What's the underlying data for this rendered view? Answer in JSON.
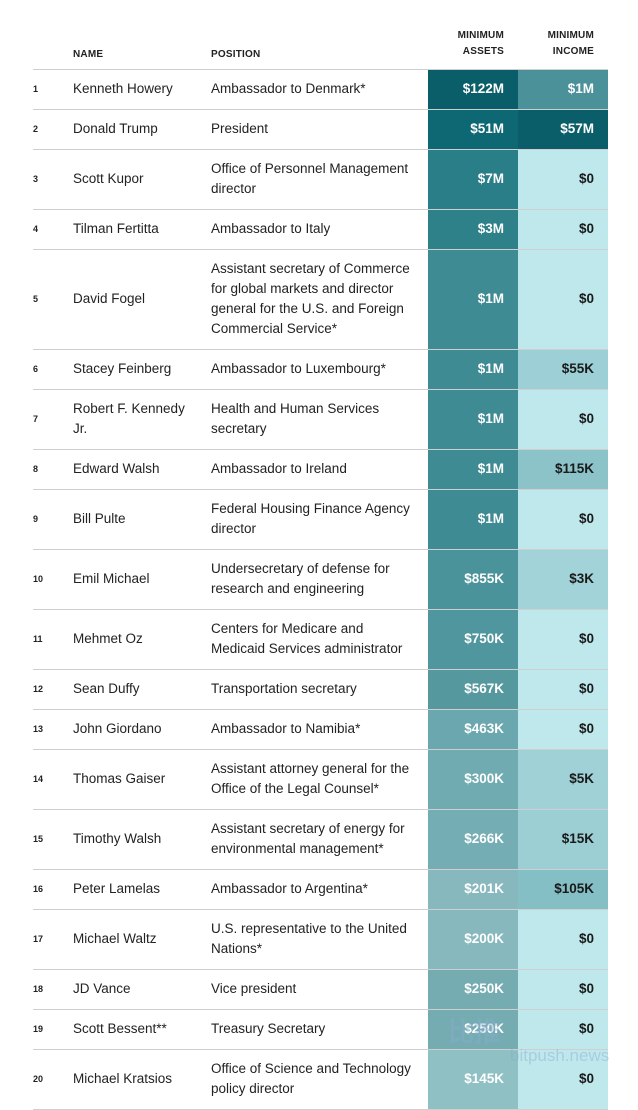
{
  "table": {
    "headers": [
      "NAME",
      "POSITION",
      "MINIMUM ASSETS",
      "MINIMUM INCOME"
    ],
    "rows": [
      {
        "rank": "1",
        "name": "Kenneth Howery",
        "position": "Ambassador to Denmark*",
        "assets": "$122M",
        "assets_color": "#0a5e69",
        "income": "$1M",
        "income_color": "#4a919a"
      },
      {
        "rank": "2",
        "name": "Donald Trump",
        "position": "President",
        "assets": "$51M",
        "assets_color": "#0d6873",
        "income": "$57M",
        "income_color": "#0a5e69"
      },
      {
        "rank": "3",
        "name": "Scott Kupor",
        "position": "Office of Personnel Management director",
        "assets": "$7M",
        "assets_color": "#2a7e87",
        "income": "$0",
        "income_color": "#bfe8ec"
      },
      {
        "rank": "4",
        "name": "Tilman Fertitta",
        "position": "Ambassador to Italy",
        "assets": "$3M",
        "assets_color": "#2e8089",
        "income": "$0",
        "income_color": "#bfe8ec"
      },
      {
        "rank": "5",
        "name": "David Fogel",
        "position": "Assistant secretary of Commerce for global markets and director general for the U.S. and Foreign Commercial Service*",
        "assets": "$1M",
        "assets_color": "#3f8b94",
        "income": "$0",
        "income_color": "#bfe8ec"
      },
      {
        "rank": "6",
        "name": "Stacey Feinberg",
        "position": "Ambassador to Luxembourg*",
        "assets": "$1M",
        "assets_color": "#3f8b94",
        "income": "$55K",
        "income_color": "#9dd0d6"
      },
      {
        "rank": "7",
        "name": "Robert F. Kennedy Jr.",
        "position": "Health and Human Services secretary",
        "assets": "$1M",
        "assets_color": "#3f8b94",
        "income": "$0",
        "income_color": "#bfe8ec"
      },
      {
        "rank": "8",
        "name": "Edward Walsh",
        "position": "Ambassador to Ireland",
        "assets": "$1M",
        "assets_color": "#3f8b94",
        "income": "$115K",
        "income_color": "#8cc3c9"
      },
      {
        "rank": "9",
        "name": "Bill Pulte",
        "position": "Federal Housing Finance Agency director",
        "assets": "$1M",
        "assets_color": "#3f8b94",
        "income": "$0",
        "income_color": "#bfe8ec"
      },
      {
        "rank": "10",
        "name": "Emil Michael",
        "position": "Undersecretary of defense for research and engineering",
        "assets": "$855K",
        "assets_color": "#4a939b",
        "income": "$3K",
        "income_color": "#a2d3d8"
      },
      {
        "rank": "11",
        "name": "Mehmet Oz",
        "position": "Centers for Medicare and Medicaid Services administrator",
        "assets": "$750K",
        "assets_color": "#50969e",
        "income": "$0",
        "income_color": "#bfe8ec"
      },
      {
        "rank": "12",
        "name": "Sean Duffy",
        "position": "Transportation secretary",
        "assets": "$567K",
        "assets_color": "#55999f",
        "income": "$0",
        "income_color": "#bfe8ec"
      },
      {
        "rank": "13",
        "name": "John Giordano",
        "position": "Ambassador to Namibia*",
        "assets": "$463K",
        "assets_color": "#6aa7ae",
        "income": "$0",
        "income_color": "#bfe8ec"
      },
      {
        "rank": "14",
        "name": "Thomas Gaiser",
        "position": "Assistant attorney general for the Office of the Legal Counsel*",
        "assets": "$300K",
        "assets_color": "#6fabb1",
        "income": "$5K",
        "income_color": "#a0d1d6"
      },
      {
        "rank": "15",
        "name": "Timothy Walsh",
        "position": "Assistant secretary of energy for environmental management*",
        "assets": "$266K",
        "assets_color": "#74adb3",
        "income": "$15K",
        "income_color": "#9ccfd4"
      },
      {
        "rank": "16",
        "name": "Peter Lamelas",
        "position": "Ambassador to Argentina*",
        "assets": "$201K",
        "assets_color": "#87b8bd",
        "income": "$105K",
        "income_color": "#83bfc5"
      },
      {
        "rank": "17",
        "name": "Michael Waltz",
        "position": "U.S. representative to the United Nations*",
        "assets": "$200K",
        "assets_color": "#86b8bd",
        "income": "$0",
        "income_color": "#bfe8ec"
      },
      {
        "rank": "18",
        "name": "JD Vance",
        "position": "Vice president",
        "assets": "$250K",
        "assets_color": "#74acb2",
        "income": "$0",
        "income_color": "#bfe8ec"
      },
      {
        "rank": "19",
        "name": "Scott Bessent**",
        "position": "Treasury Secretary",
        "assets": "$250K",
        "assets_color": "#74acb2",
        "income": "$0",
        "income_color": "#bfe8ec"
      },
      {
        "rank": "20",
        "name": "Michael Kratsios",
        "position": "Office of Science and Technology policy director",
        "assets": "$145K",
        "assets_color": "#8fc0c4",
        "income": "$0",
        "income_color": "#bfe8ec"
      }
    ]
  },
  "watermark": {
    "logo": "比推",
    "site": "bitpush.news"
  }
}
